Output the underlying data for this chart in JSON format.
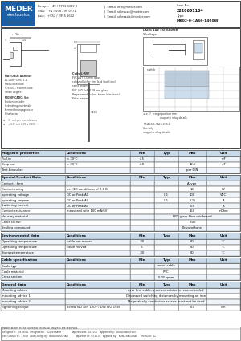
{
  "title": "MK02-0-1A66-1400W",
  "item_no": "2220661184",
  "europe": "Europe: +49 / 7731 8399 0",
  "usa": "USA:    +1 / 508 295 0771",
  "asia": "Asia:   +852 / 2955 1682",
  "email_info": "Email: info@meder.com",
  "email_sales_usa": "Email: salesusa@meder.com",
  "email_sales_asia": "Email: salesasia@meder.com",
  "meder_blue": "#1a5fa8",
  "bg_color": "#ffffff",
  "tbl_hdr_bg": "#c8daea",
  "tbl_alt_bg": "#eef4f9",
  "border_color": "#777777",
  "magnetic_header": [
    "Magnetic properties",
    "Conditions",
    "Min",
    "Typ",
    "Max",
    "Unit"
  ],
  "magnetic_rows": [
    [
      "Pull in",
      "< 20°C",
      "4,5",
      "",
      "",
      "mT"
    ],
    [
      "Drop out",
      "< 20°C",
      "2,8",
      "",
      "12,5",
      "mT"
    ],
    [
      "Test Ampullae",
      "",
      "",
      "",
      "per DIN",
      ""
    ]
  ],
  "special_header": [
    "Special Product Data",
    "Conditions",
    "Min",
    "Typ",
    "Max",
    "Unit"
  ],
  "special_rows": [
    [
      "Contact - form",
      "",
      "",
      "",
      "A-type",
      ""
    ],
    [
      "Contact rating",
      "per IEC conditions of 9.6 B",
      "",
      "",
      "10",
      "W"
    ],
    [
      "operating voltage",
      "DC or Peak AC",
      "",
      "0,1",
      "100",
      "VDC"
    ],
    [
      "operating ampere",
      "DC or Peak AC",
      "",
      "0,1",
      "1,25",
      "A"
    ],
    [
      "Switching current",
      "DC or Peak AC",
      "",
      "",
      "0,5",
      "A"
    ],
    [
      "Contact resistance",
      "measured with 100 mA/6V",
      "",
      "",
      "150",
      "mOhm"
    ],
    [
      "Housing material",
      "",
      "",
      "",
      "PBT glass fibre reinforced",
      ""
    ],
    [
      "Cable colour",
      "",
      "",
      "",
      "blue",
      ""
    ],
    [
      "Sealing compound",
      "",
      "",
      "",
      "Polyurethane",
      ""
    ]
  ],
  "env_header": [
    "Environmental data",
    "Conditions",
    "Min",
    "Typ",
    "Max",
    "Unit"
  ],
  "env_rows": [
    [
      "Operating temperature",
      "cable not moved",
      "-30",
      "",
      "80",
      "°C"
    ],
    [
      "Operating temperature",
      "cable moved",
      "-5",
      "",
      "80",
      "°C"
    ],
    [
      "Storage temperature",
      "",
      "-30",
      "",
      "80",
      "°C"
    ]
  ],
  "cable_header": [
    "Cable specification",
    "Conditions",
    "Min",
    "Typ",
    "Max",
    "Unit"
  ],
  "cable_rows": [
    [
      "Cable typ",
      "",
      "",
      "round cable",
      "",
      ""
    ],
    [
      "Cable material",
      "",
      "",
      "PVC",
      "",
      ""
    ],
    [
      "Cross section",
      "",
      "",
      "0,25 qmm",
      "",
      ""
    ]
  ],
  "general_header": [
    "General data",
    "Conditions",
    "Min",
    "Typ",
    "Max",
    "Unit"
  ],
  "general_rows": [
    [
      "Mounting advice",
      "",
      "",
      "over firm cable, a series resistor is recommended",
      "",
      ""
    ],
    [
      "mounting advice 1",
      "",
      "",
      "Decreased switching distances by mounting on iron",
      "",
      ""
    ],
    [
      "mounting advice 2",
      "",
      "",
      "Magnetically conductive screws must not be used",
      "",
      ""
    ],
    [
      "tightening torque",
      "Screw ISO DIN 1207 / DIN ISO 1580",
      "",
      "",
      "0,1",
      "Nm"
    ]
  ],
  "footer_mod": "Modifications in the course of technical progress are reserved.",
  "footer_row1": "Designed at:   03.08.04   Designed by:   KOLVENBACH                Approved at:  03.10.07   Approved by:   BUBLEHAGOPIAN",
  "footer_row2": "Last Change at:  7.8.09   Last Change by:  BUBLEHAGOPIAN            Approval at:  03.10.08   Approval by:   BUBLEHAGOPIAN      Revision:  12"
}
